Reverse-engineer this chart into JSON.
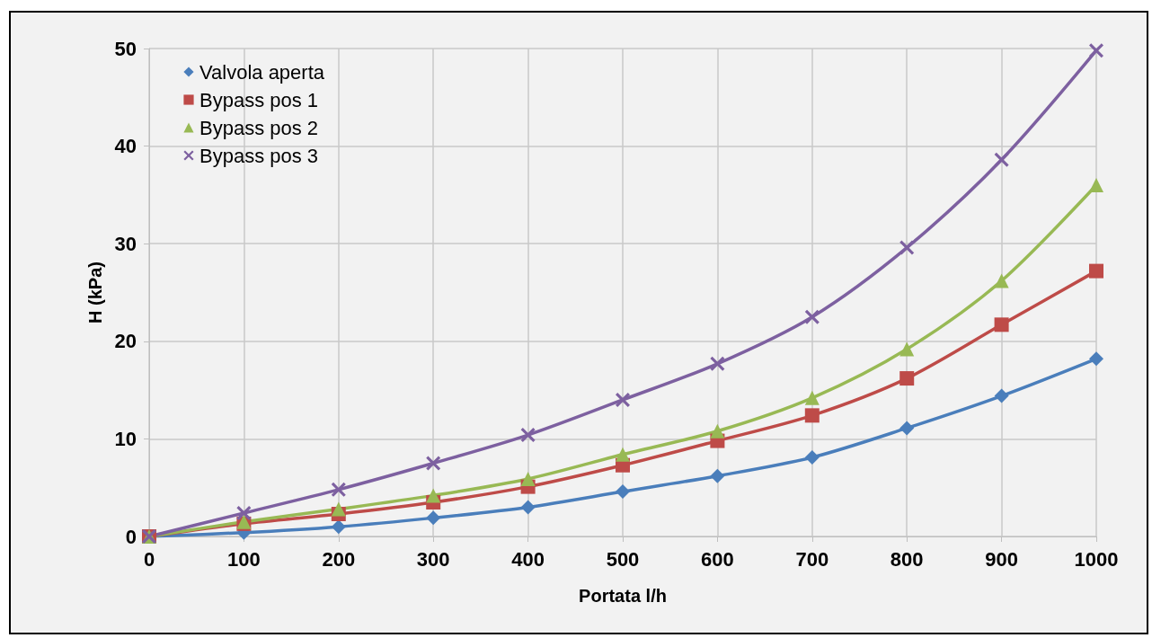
{
  "chart_data": {
    "type": "line",
    "xlabel": "Portata l/h",
    "ylabel": "H (kPa)",
    "x": [
      0,
      100,
      200,
      300,
      400,
      500,
      600,
      700,
      800,
      900,
      1000
    ],
    "series": [
      {
        "name": "Valvola aperta",
        "color": "#4a7ebb",
        "marker": "diamond",
        "values": [
          0,
          0.4,
          1.0,
          1.9,
          3.0,
          4.6,
          6.2,
          8.1,
          11.1,
          14.4,
          18.2
        ]
      },
      {
        "name": "Bypass pos 1",
        "color": "#be4b48",
        "marker": "square",
        "values": [
          0,
          1.3,
          2.3,
          3.5,
          5.1,
          7.3,
          9.8,
          12.4,
          16.2,
          21.7,
          27.2
        ]
      },
      {
        "name": "Bypass pos 2",
        "color": "#98b954",
        "marker": "triangle",
        "values": [
          0,
          1.5,
          2.8,
          4.2,
          5.9,
          8.4,
          10.8,
          14.2,
          19.2,
          26.2,
          36.0
        ]
      },
      {
        "name": "Bypass pos 3",
        "color": "#7d60a0",
        "marker": "cross",
        "values": [
          0,
          2.4,
          4.8,
          7.5,
          10.4,
          14.0,
          17.7,
          22.5,
          29.6,
          38.6,
          49.8
        ]
      }
    ],
    "xlim": [
      0,
      1000
    ],
    "xticks": [
      0,
      100,
      200,
      300,
      400,
      500,
      600,
      700,
      800,
      900,
      1000
    ],
    "ylim": [
      0,
      50
    ],
    "yticks": [
      0,
      10,
      20,
      30,
      40,
      50
    ],
    "grid": true,
    "legend": "top left",
    "line_style": "solid"
  }
}
